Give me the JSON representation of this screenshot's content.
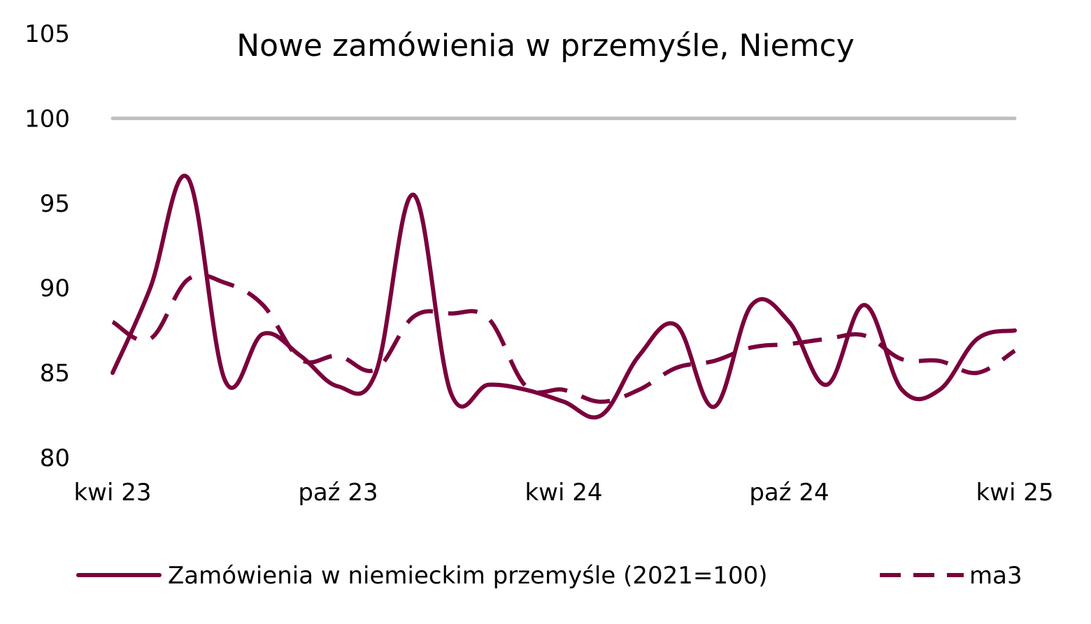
{
  "chart_data": {
    "type": "line",
    "title": "Nowe zamówienia w przemyśle, Niemcy",
    "xlabel": "",
    "ylabel": "",
    "ylim": [
      80,
      105
    ],
    "yticks": [
      "80",
      "85",
      "90",
      "95",
      "100",
      "105"
    ],
    "x_tick_labels": [
      "kwi 23",
      "paź 23",
      "kwi 24",
      "paź 24",
      "kwi 25"
    ],
    "x_tick_indices": [
      0,
      6,
      12,
      18,
      24
    ],
    "reference_line": {
      "value": 100,
      "color": "#bfbfbf"
    },
    "series": [
      {
        "name": "Zamówienia w niemieckim przemyśle (2021=100)",
        "style": "solid",
        "color": "#7a003c",
        "values": [
          85.0,
          90.0,
          96.5,
          84.5,
          87.3,
          86.0,
          84.2,
          85.0,
          95.5,
          83.8,
          84.3,
          84.0,
          83.3,
          82.5,
          86.0,
          87.8,
          83.0,
          89.0,
          88.0,
          84.3,
          89.0,
          84.0,
          84.0,
          87.0,
          87.5
        ]
      },
      {
        "name": "ma3",
        "style": "dashed",
        "color": "#7a003c",
        "values": [
          88.0,
          87.0,
          90.5,
          90.3,
          89.0,
          85.8,
          86.0,
          85.2,
          88.3,
          88.5,
          88.2,
          84.2,
          84.0,
          83.3,
          84.0,
          85.3,
          85.7,
          86.5,
          86.7,
          87.0,
          87.2,
          85.8,
          85.7,
          85.0,
          86.3
        ]
      }
    ],
    "legend": {
      "placement": "bottom"
    }
  }
}
